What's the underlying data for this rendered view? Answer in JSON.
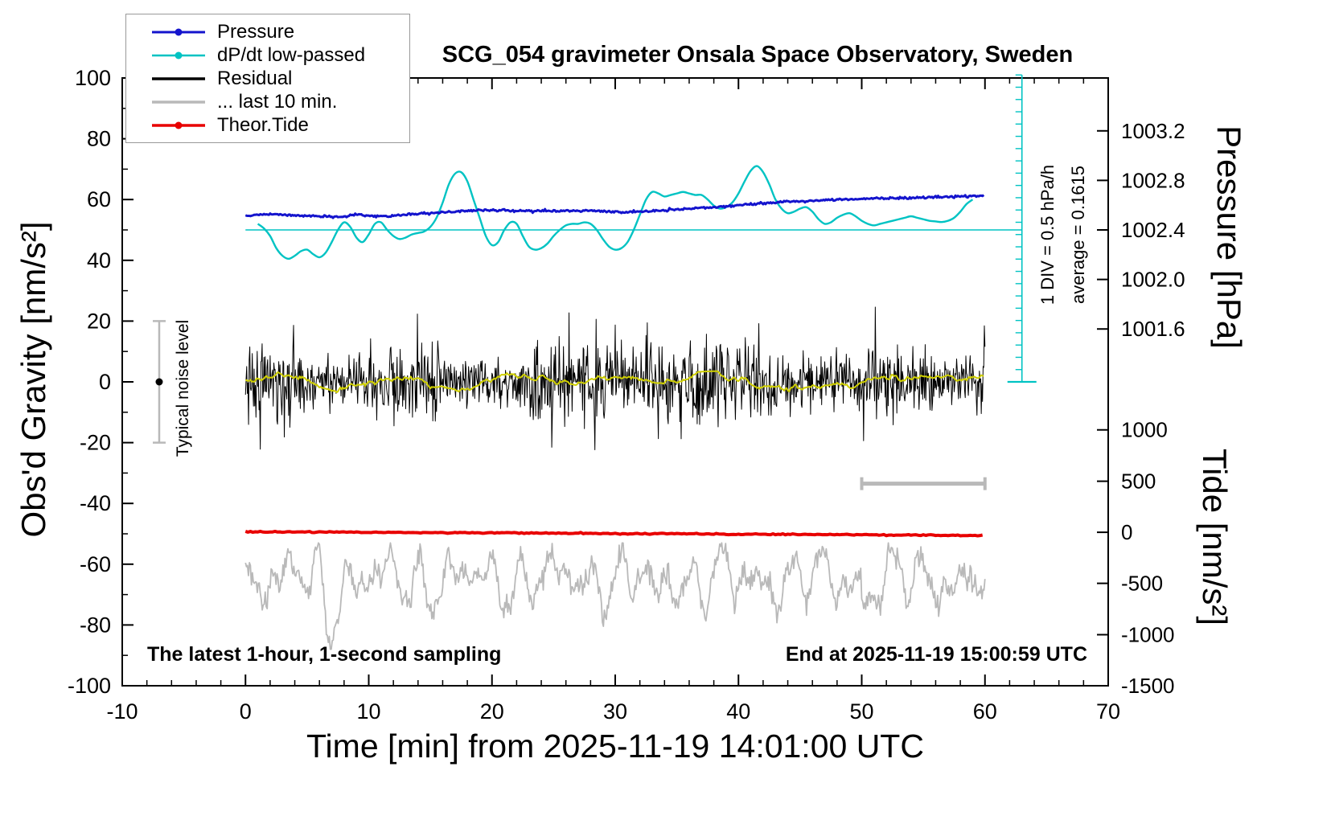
{
  "title": "SCG_054 gravimeter Onsala Space Observatory, Sweden",
  "axes": {
    "left_label": "Obs'd Gravity [nm/s²]",
    "bottom_label": "Time [min] from 2025-11-19 14:01:00 UTC",
    "right_top_label": "Pressure [hPa]",
    "right_bottom_label": "Tide [nm/s²]"
  },
  "annotations": {
    "div_note": "1 DIV = 0.5 hPa/h",
    "average_note": "average = 0.1615",
    "noise_label": "Typical noise level",
    "bottom_left": "The latest 1-hour, 1-second sampling",
    "bottom_right": "End at 2025-11-19 15:00:59 UTC"
  },
  "legend": {
    "items": [
      {
        "label": "Pressure",
        "color": "#1414cd",
        "dot": true,
        "width": 3
      },
      {
        "label": "dP/dt low-passed",
        "color": "#00c3c3",
        "dot": true,
        "width": 2.5
      },
      {
        "label": "Residual",
        "color": "#000000",
        "dot": false,
        "width": 3.5
      },
      {
        "label": "... last 10 min.",
        "color": "#b9b9b9",
        "dot": false,
        "width": 3.5
      },
      {
        "label": "Theor.Tide",
        "color": "#e80000",
        "dot": true,
        "width": 3.5
      }
    ]
  },
  "colors": {
    "pressure": "#1414cd",
    "dpdt": "#00c3c3",
    "residual": "#000000",
    "lowpass": "#cfcf00",
    "tide": "#e80000",
    "gray": "#b9b9b9",
    "frame": "#000000"
  },
  "chart_data": {
    "type": "line",
    "title": "SCG_054 gravimeter Onsala Space Observatory, Sweden",
    "xlabel": "Time [min] from 2025-11-19 14:01:00 UTC",
    "ylabel": "Obs'd Gravity [nm/s²]",
    "coordinate_note": "all series y-values are given in left-axis (Obs'd Gravity nm/s²) plot units",
    "xlim": [
      -10,
      70
    ],
    "ylim": [
      -100,
      100
    ],
    "x_ticks": [
      -10,
      0,
      10,
      20,
      30,
      40,
      50,
      60,
      70
    ],
    "y_ticks": [
      -100,
      -80,
      -60,
      -40,
      -20,
      0,
      20,
      40,
      60,
      80,
      100
    ],
    "x_minor_step": 2,
    "y_minor_step": 10,
    "grid": false,
    "legend_position": "upper-left",
    "pressure_axis": {
      "label": "Pressure [hPa]",
      "tick_labels": [
        "1003.2",
        "1002.8",
        "1002.4",
        "1002.0",
        "1001.6"
      ],
      "gravity_positions": [
        82.6,
        66.3,
        50.0,
        33.7,
        17.4
      ]
    },
    "tide_axis": {
      "label": "Tide [nm/s²]",
      "tick_labels": [
        "1000",
        "500",
        "0",
        "-500",
        "-1000",
        "-1500"
      ],
      "gravity_positions": [
        -15.8,
        -32.7,
        -49.5,
        -66.3,
        -83.2,
        -100.0
      ]
    },
    "reference_line": {
      "y": 50,
      "x_start": 0,
      "x_end": 63
    },
    "div_ruler": {
      "x": 63,
      "y_top": 101,
      "y_bottom": 0,
      "n_ticks": 25,
      "cap_halfwidth": 18,
      "meaning": "1 DIV = 0.5 hPa/h, average = 0.1615"
    },
    "scale_bar": {
      "x_start": 50,
      "x_end": 60,
      "y": -33.5
    },
    "noise_bar": {
      "x": -7,
      "y_center": 0,
      "half_height": 20
    },
    "series": {
      "pressure": {
        "name": "Pressure",
        "points": [
          [
            0,
            54.8
          ],
          [
            1,
            55.0
          ],
          [
            2,
            55.1
          ],
          [
            3,
            54.9
          ],
          [
            4,
            54.8
          ],
          [
            5,
            54.6
          ],
          [
            6,
            54.5
          ],
          [
            7,
            54.4
          ],
          [
            8,
            54.3
          ],
          [
            9,
            55.1
          ],
          [
            10,
            54.6
          ],
          [
            11,
            54.5
          ],
          [
            12,
            54.6
          ],
          [
            13,
            55.0
          ],
          [
            14,
            55.2
          ],
          [
            15,
            55.5
          ],
          [
            16,
            55.8
          ],
          [
            17,
            56.0
          ],
          [
            18,
            56.3
          ],
          [
            19,
            56.5
          ],
          [
            20,
            56.4
          ],
          [
            21,
            56.6
          ],
          [
            22,
            56.2
          ],
          [
            23,
            56.3
          ],
          [
            24,
            56.3
          ],
          [
            25,
            56.2
          ],
          [
            26,
            56.2
          ],
          [
            27,
            56.3
          ],
          [
            28,
            56.4
          ],
          [
            29,
            56.1
          ],
          [
            30,
            56.0
          ],
          [
            31,
            55.8
          ],
          [
            32,
            56.0
          ],
          [
            33,
            56.3
          ],
          [
            34,
            56.5
          ],
          [
            35,
            56.8
          ],
          [
            36,
            57.0
          ],
          [
            37,
            57.3
          ],
          [
            38,
            57.5
          ],
          [
            39,
            57.8
          ],
          [
            40,
            58.1
          ],
          [
            41,
            58.4
          ],
          [
            42,
            58.7
          ],
          [
            43,
            59.0
          ],
          [
            44,
            59.3
          ],
          [
            45,
            59.5
          ],
          [
            46,
            59.7
          ],
          [
            47,
            59.9
          ],
          [
            48,
            60.0
          ],
          [
            49,
            60.1
          ],
          [
            50,
            60.2
          ],
          [
            51,
            60.3
          ],
          [
            52,
            60.4
          ],
          [
            53,
            60.5
          ],
          [
            54,
            60.6
          ],
          [
            55,
            60.7
          ],
          [
            56,
            60.8
          ],
          [
            57,
            60.9
          ],
          [
            58,
            61.0
          ],
          [
            59,
            61.2
          ],
          [
            60,
            61.4
          ]
        ],
        "jitter": 0.18,
        "seed": 5
      },
      "dpdt": {
        "name": "dP/dt low-passed",
        "points": [
          [
            1,
            52
          ],
          [
            1.5,
            50.5
          ],
          [
            2,
            48
          ],
          [
            2.5,
            44
          ],
          [
            3,
            41.5
          ],
          [
            3.5,
            40.5
          ],
          [
            4,
            41.5
          ],
          [
            4.5,
            43
          ],
          [
            5,
            43.5
          ],
          [
            5.5,
            42
          ],
          [
            6,
            41
          ],
          [
            6.5,
            42.5
          ],
          [
            7,
            46
          ],
          [
            7.5,
            50
          ],
          [
            8,
            52.5
          ],
          [
            8.5,
            51
          ],
          [
            9,
            47.5
          ],
          [
            9.5,
            46
          ],
          [
            10,
            48.5
          ],
          [
            10.5,
            52
          ],
          [
            11,
            52.5
          ],
          [
            11.5,
            50
          ],
          [
            12,
            48
          ],
          [
            12.5,
            47
          ],
          [
            13,
            47.5
          ],
          [
            13.5,
            48.5
          ],
          [
            14,
            49
          ],
          [
            14.5,
            49.5
          ],
          [
            15,
            51
          ],
          [
            15.5,
            54
          ],
          [
            16,
            59
          ],
          [
            16.5,
            65
          ],
          [
            17,
            68.5
          ],
          [
            17.5,
            69
          ],
          [
            18,
            66
          ],
          [
            18.5,
            60
          ],
          [
            19,
            54
          ],
          [
            19.5,
            48
          ],
          [
            20,
            45
          ],
          [
            20.5,
            46
          ],
          [
            21,
            50
          ],
          [
            21.5,
            52.5
          ],
          [
            22,
            52
          ],
          [
            22.5,
            48
          ],
          [
            23,
            44.5
          ],
          [
            23.5,
            43.5
          ],
          [
            24,
            44
          ],
          [
            24.5,
            45.5
          ],
          [
            25,
            48
          ],
          [
            25.5,
            50
          ],
          [
            26,
            51.5
          ],
          [
            26.5,
            52
          ],
          [
            27,
            52
          ],
          [
            27.5,
            52.5
          ],
          [
            28,
            52
          ],
          [
            28.5,
            50
          ],
          [
            29,
            47
          ],
          [
            29.5,
            44.5
          ],
          [
            30,
            43.5
          ],
          [
            30.5,
            44
          ],
          [
            31,
            46
          ],
          [
            31.5,
            50
          ],
          [
            32,
            55
          ],
          [
            32.5,
            60
          ],
          [
            33,
            62.5
          ],
          [
            33.5,
            62
          ],
          [
            34,
            61
          ],
          [
            34.5,
            61.5
          ],
          [
            35,
            62
          ],
          [
            35.5,
            62.5
          ],
          [
            36,
            62
          ],
          [
            36.5,
            61.5
          ],
          [
            37,
            61.5
          ],
          [
            37.5,
            60
          ],
          [
            38,
            58
          ],
          [
            38.5,
            57
          ],
          [
            39,
            57.5
          ],
          [
            39.5,
            59
          ],
          [
            40,
            62
          ],
          [
            40.5,
            66
          ],
          [
            41,
            69.5
          ],
          [
            41.5,
            71
          ],
          [
            42,
            69
          ],
          [
            42.5,
            65
          ],
          [
            43,
            60
          ],
          [
            43.5,
            57
          ],
          [
            44,
            55.5
          ],
          [
            44.5,
            56
          ],
          [
            45,
            57
          ],
          [
            45.5,
            57.5
          ],
          [
            46,
            56
          ],
          [
            46.5,
            53.5
          ],
          [
            47,
            52
          ],
          [
            47.5,
            52.5
          ],
          [
            48,
            54
          ],
          [
            48.5,
            55
          ],
          [
            49,
            55.5
          ],
          [
            49.5,
            54.5
          ],
          [
            50,
            53
          ],
          [
            50.5,
            52
          ],
          [
            51,
            51.5
          ],
          [
            51.5,
            52
          ],
          [
            52,
            52.5
          ],
          [
            52.5,
            53
          ],
          [
            53,
            53.5
          ],
          [
            53.5,
            54
          ],
          [
            54,
            54.5
          ],
          [
            54.5,
            54
          ],
          [
            55,
            53.5
          ],
          [
            55.5,
            53
          ],
          [
            56,
            52.8
          ],
          [
            56.5,
            52.6
          ],
          [
            57,
            53
          ],
          [
            57.5,
            54
          ],
          [
            58,
            56
          ],
          [
            58.5,
            58.5
          ],
          [
            59,
            60
          ]
        ]
      },
      "tide": {
        "name": "Theor.Tide",
        "points": [
          [
            0,
            -49.3
          ],
          [
            10,
            -49.5
          ],
          [
            20,
            -49.7
          ],
          [
            30,
            -49.9
          ],
          [
            40,
            -50.1
          ],
          [
            50,
            -50.3
          ],
          [
            60,
            -50.6
          ]
        ],
        "jitter": 0.1,
        "seed": 9
      },
      "residual": {
        "name": "Residual",
        "stochastic": {
          "seed": 20251119,
          "x_start": 0,
          "x_end": 60,
          "x_step": 0.05,
          "std": 6.2,
          "spike_prob": 0.02,
          "spike_gain": 1.8,
          "clip_low": -33,
          "clip_high": 28
        }
      },
      "residual_lowpass": {
        "name": "Residual low-passed (yellow)",
        "stochastic": {
          "seed": 77,
          "x_start": 0,
          "x_end": 60,
          "x_step": 0.1,
          "ar": 0.96,
          "gain": 0.35,
          "clip": 3,
          "wobble_amp": 0.5,
          "wobble_freq": 0.7
        }
      },
      "last10": {
        "name": "... last 10 min.",
        "stochastic": {
          "seed": 311,
          "x_start": 0,
          "x_end": 60,
          "x_step": 0.08,
          "base": -65,
          "noise": 2,
          "sines": [
            [
              5.5,
              2.3,
              0.5
            ],
            [
              4,
              3.1,
              1.7
            ],
            [
              3,
              0.9,
              4
            ],
            [
              2.5,
              5.3,
              2.2
            ]
          ],
          "dips": [
            [
              6.8,
              16,
              0.25
            ],
            [
              33.2,
              9,
              0.18
            ],
            [
              50.5,
              8,
              0.2
            ]
          ],
          "clip_low": -88,
          "clip_high": -53
        }
      }
    }
  }
}
